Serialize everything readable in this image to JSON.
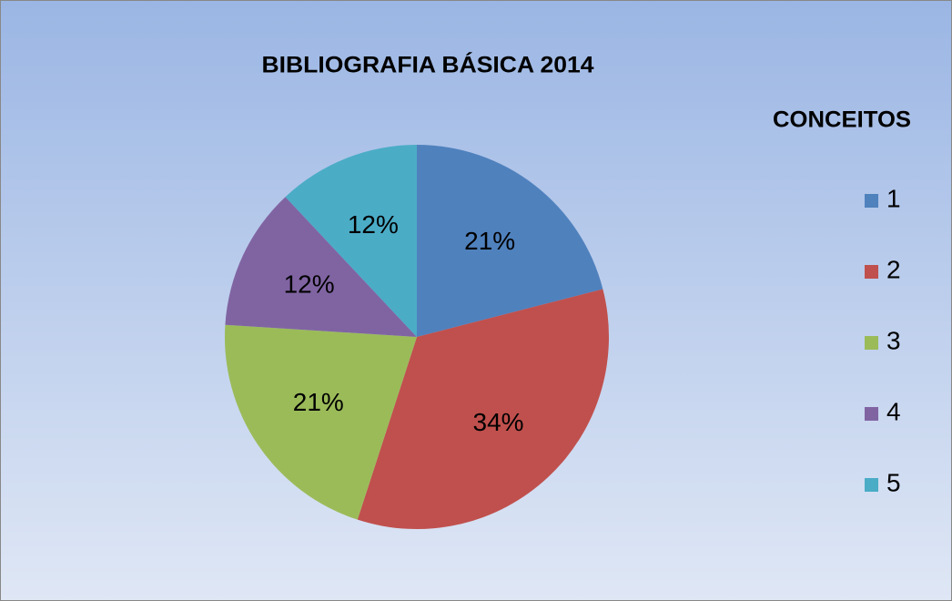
{
  "chart_data": {
    "type": "pie",
    "title": "BIBLIOGRAFIA BÁSICA 2014",
    "legend_title": "CONCEITOS",
    "legend": "right",
    "categories": [
      "1",
      "2",
      "3",
      "4",
      "5"
    ],
    "values": [
      21,
      34,
      21,
      12,
      12
    ],
    "value_labels": [
      "21%",
      "34%",
      "21%",
      "12%",
      "12%"
    ],
    "colors": [
      "#4f81bd",
      "#c0504d",
      "#9bbb59",
      "#8064a2",
      "#4bacc6"
    ]
  }
}
